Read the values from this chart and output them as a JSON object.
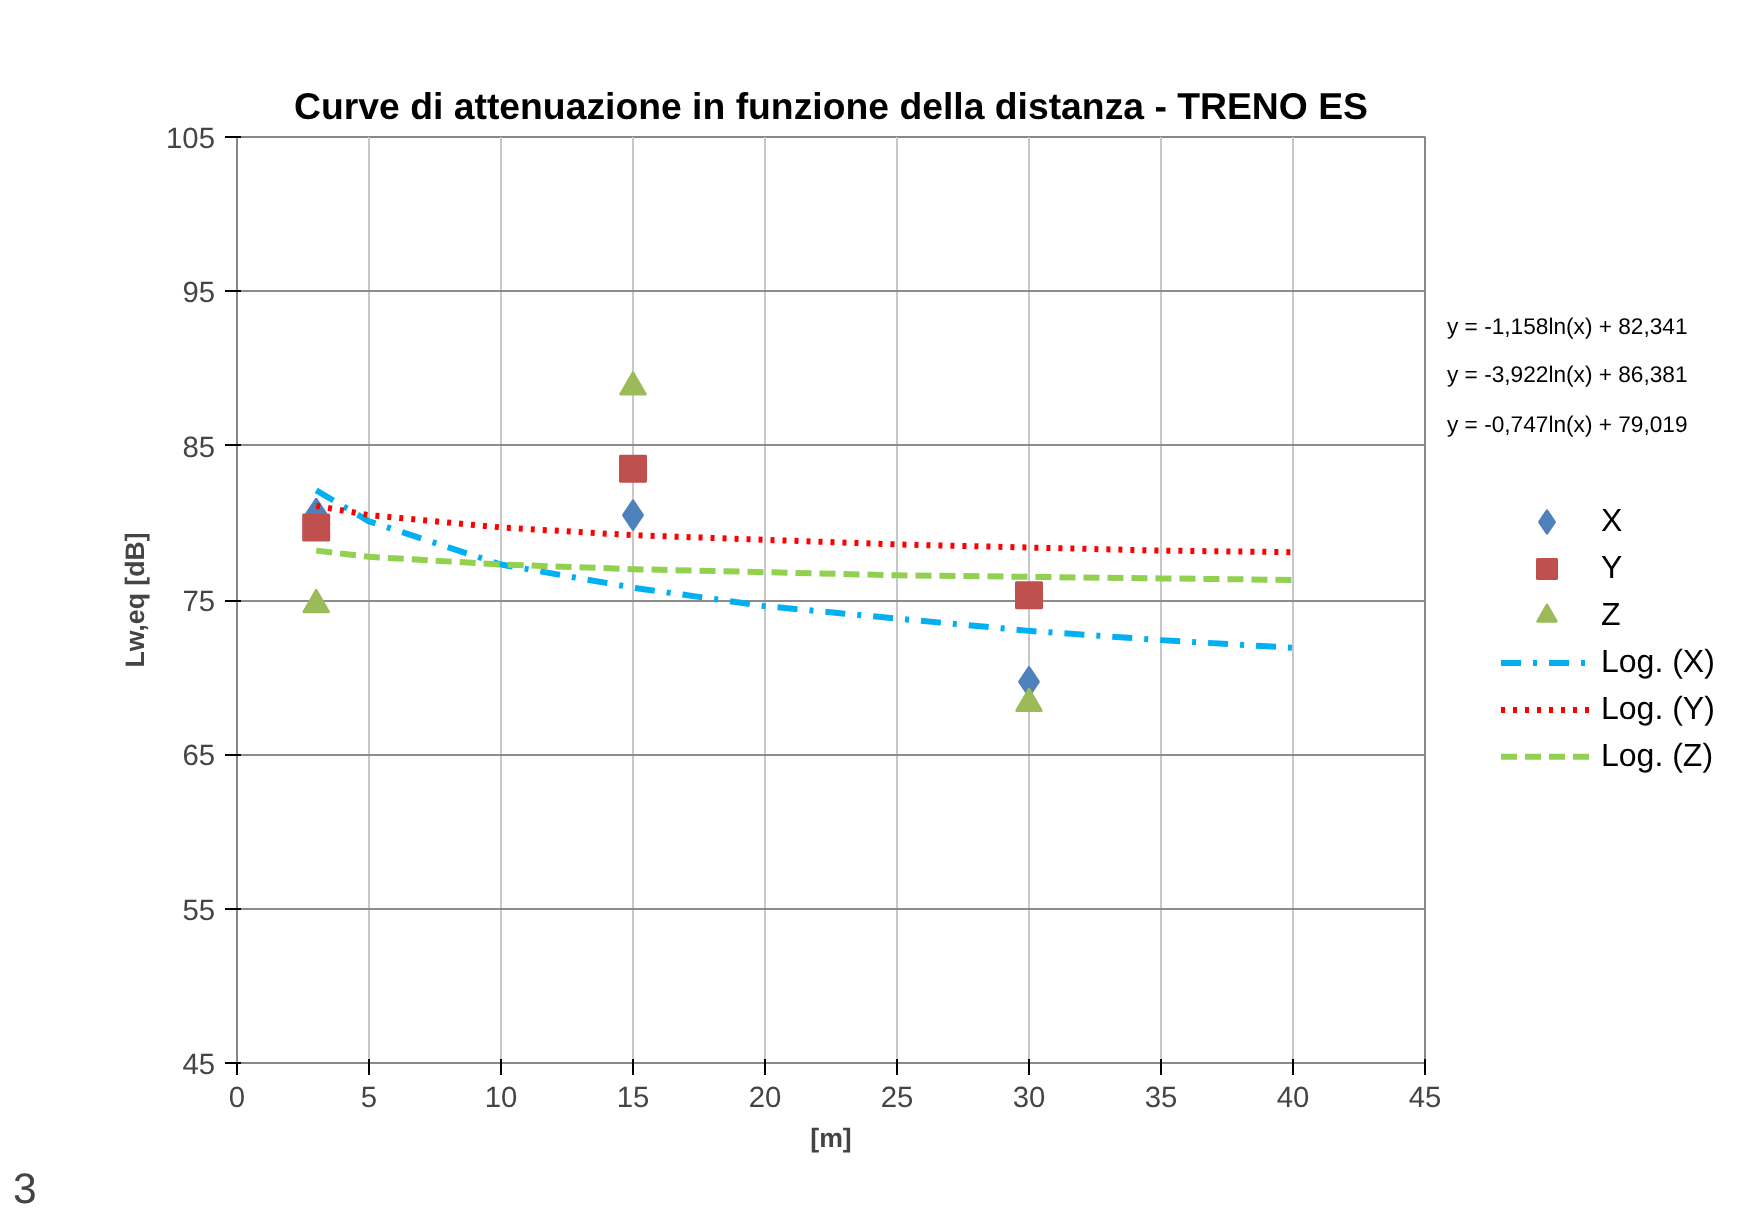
{
  "chart_data": {
    "type": "scatter",
    "title": "Curve di attenuazione in funzione della distanza - TRENO ES",
    "xlabel": "[m]",
    "ylabel": "Lw,eq [dB]",
    "x": [
      3,
      15,
      30
    ],
    "series": [
      {
        "name": "X",
        "color": "#4f81bd",
        "marker": "diamond",
        "values": [
          80.6,
          80.5,
          69.7
        ]
      },
      {
        "name": "Y",
        "color": "#c0504d",
        "marker": "square",
        "values": [
          79.7,
          83.5,
          75.3
        ]
      },
      {
        "name": "Z",
        "color": "#9bbb59",
        "marker": "triangle",
        "values": [
          74.7,
          88.8,
          68.3
        ]
      },
      {
        "name": "Log. (X)",
        "type": "line",
        "color": "#00b0f0",
        "line_style": "dashdot",
        "marker": "none",
        "x": [
          3,
          5,
          10,
          15,
          20,
          25,
          30,
          35,
          40
        ],
        "values": [
          82.1,
          80.1,
          77.3,
          75.8,
          74.6,
          73.8,
          73.0,
          72.4,
          71.9
        ]
      },
      {
        "name": "Log. (Y)",
        "type": "line",
        "color": "#ff0000",
        "line_style": "dotted",
        "marker": "none",
        "x": [
          3,
          5,
          10,
          15,
          20,
          25,
          30,
          35,
          40
        ],
        "values": [
          81.1,
          80.5,
          79.7,
          79.2,
          78.9,
          78.6,
          78.4,
          78.2,
          78.1
        ]
      },
      {
        "name": "Log. (Z)",
        "type": "line",
        "color": "#92d050",
        "line_style": "dashed",
        "marker": "none",
        "x": [
          3,
          5,
          10,
          15,
          20,
          25,
          30,
          35,
          40
        ],
        "values": [
          78.2,
          77.8,
          77.3,
          77.0,
          76.8,
          76.6,
          76.5,
          76.4,
          76.3
        ]
      }
    ],
    "xlim": [
      0,
      45
    ],
    "xticks": [
      0,
      5,
      10,
      15,
      20,
      25,
      30,
      35,
      40,
      45
    ],
    "ylim": [
      45,
      105
    ],
    "yticks": [
      45,
      55,
      65,
      75,
      85,
      95,
      105
    ],
    "grid": true,
    "legend": "right",
    "annotations": [
      "y = -1,158ln(x) + 82,341",
      "y = -3,922ln(x) + 86,381",
      "y = -0,747ln(x) + 79,019",
      "3"
    ]
  }
}
